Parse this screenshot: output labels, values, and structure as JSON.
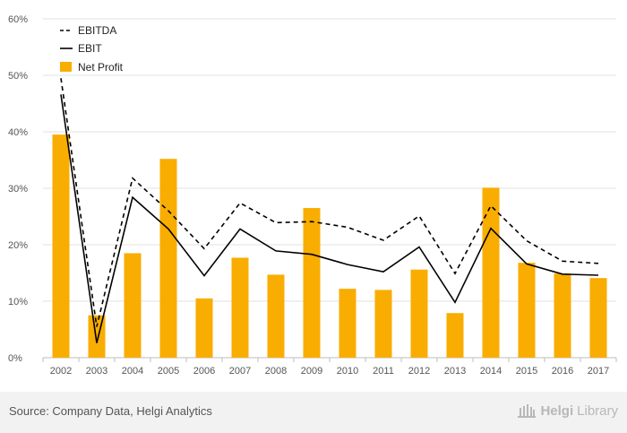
{
  "chart_data": {
    "type": "bar",
    "categories": [
      "2002",
      "2003",
      "2004",
      "2005",
      "2006",
      "2007",
      "2008",
      "2009",
      "2010",
      "2011",
      "2012",
      "2013",
      "2014",
      "2015",
      "2016",
      "2017"
    ],
    "ylim": [
      0,
      60
    ],
    "yticks": [
      "0%",
      "10%",
      "20%",
      "30%",
      "40%",
      "50%",
      "60%"
    ],
    "series": [
      {
        "name": "EBITDA",
        "kind": "line",
        "style": "dashed",
        "values": [
          49.5,
          5.5,
          31.8,
          26.0,
          19.3,
          27.4,
          23.9,
          24.1,
          23.1,
          20.8,
          25.1,
          14.9,
          26.9,
          20.7,
          17.1,
          16.7
        ]
      },
      {
        "name": "EBIT",
        "kind": "line",
        "style": "solid",
        "values": [
          46.6,
          2.6,
          28.4,
          22.8,
          14.5,
          22.8,
          18.9,
          18.3,
          16.5,
          15.2,
          19.6,
          9.8,
          22.9,
          16.6,
          14.8,
          14.6
        ]
      },
      {
        "name": "Net Profit",
        "kind": "bar",
        "values": [
          39.5,
          7.5,
          18.5,
          35.2,
          10.5,
          17.7,
          14.7,
          26.5,
          12.2,
          12.0,
          15.6,
          7.9,
          30.1,
          16.8,
          14.9,
          14.1
        ]
      }
    ],
    "legend": [
      "EBITDA",
      "EBIT",
      "Net Profit"
    ],
    "colors": {
      "bar": "#f9ad00",
      "line": "#000000",
      "grid": "#e2e2e2"
    },
    "grid": true
  },
  "footer": {
    "source": "Source: Company Data, Helgi Analytics",
    "brand_name": "Helgi",
    "brand_suffix": "Library"
  }
}
